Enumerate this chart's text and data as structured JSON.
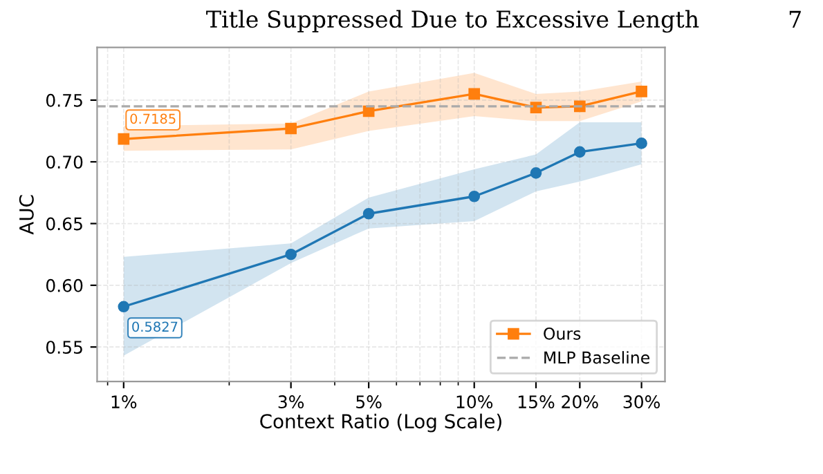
{
  "chart_data": {
    "type": "line",
    "xlabel": "Context Ratio (Log Scale)",
    "ylabel": "AUC",
    "x": [
      1,
      3,
      5,
      10,
      15,
      20,
      30
    ],
    "series": [
      {
        "color": "#1f77b4",
        "marker": "circle",
        "values": [
          0.5827,
          0.625,
          0.658,
          0.672,
          0.691,
          0.708,
          0.715
        ],
        "lower": [
          0.543,
          0.618,
          0.646,
          0.652,
          0.676,
          0.684,
          0.698
        ],
        "upper": [
          0.623,
          0.634,
          0.671,
          0.694,
          0.706,
          0.732,
          0.732
        ]
      },
      {
        "name": "Ours",
        "color": "#ff7f0e",
        "marker": "square",
        "values": [
          0.7185,
          0.727,
          0.741,
          0.755,
          0.744,
          0.745,
          0.757
        ],
        "lower": [
          0.709,
          0.71,
          0.725,
          0.737,
          0.733,
          0.733,
          0.749
        ],
        "upper": [
          0.729,
          0.731,
          0.757,
          0.772,
          0.755,
          0.757,
          0.765
        ]
      }
    ],
    "ref_lines": [
      {
        "axis": "y",
        "value": 0.745,
        "label": "MLP Baseline",
        "color": "#aaaaaa",
        "line_style": "dashed"
      }
    ],
    "annotations": [
      "Title Suppressed Due to Excessive Length",
      "7",
      {
        "text": "0.7185",
        "x": 1,
        "y": 0.7185
      },
      {
        "text": "0.5827",
        "x": 1,
        "y": 0.5827
      }
    ],
    "log": "x",
    "xlim": [
      0.84,
      35
    ],
    "xticks": [
      {
        "value": 1,
        "label": "1%"
      },
      {
        "value": 3,
        "label": "3%"
      },
      {
        "value": 5,
        "label": "5%"
      },
      {
        "value": 10,
        "label": "10%"
      },
      {
        "value": 15,
        "label": "15%"
      },
      {
        "value": 20,
        "label": "20%"
      },
      {
        "value": 30,
        "label": "30%"
      }
    ],
    "ylim": [
      0.522,
      0.7927
    ],
    "yticks": [
      {
        "value": 0.55,
        "label": "0.55"
      },
      {
        "value": 0.6,
        "label": "0.60"
      },
      {
        "value": 0.65,
        "label": "0.65"
      },
      {
        "value": 0.7,
        "label": "0.70"
      },
      {
        "value": 0.75,
        "label": "0.75"
      }
    ],
    "grid": true,
    "legend": "bottom right",
    "line_style": "solid"
  }
}
